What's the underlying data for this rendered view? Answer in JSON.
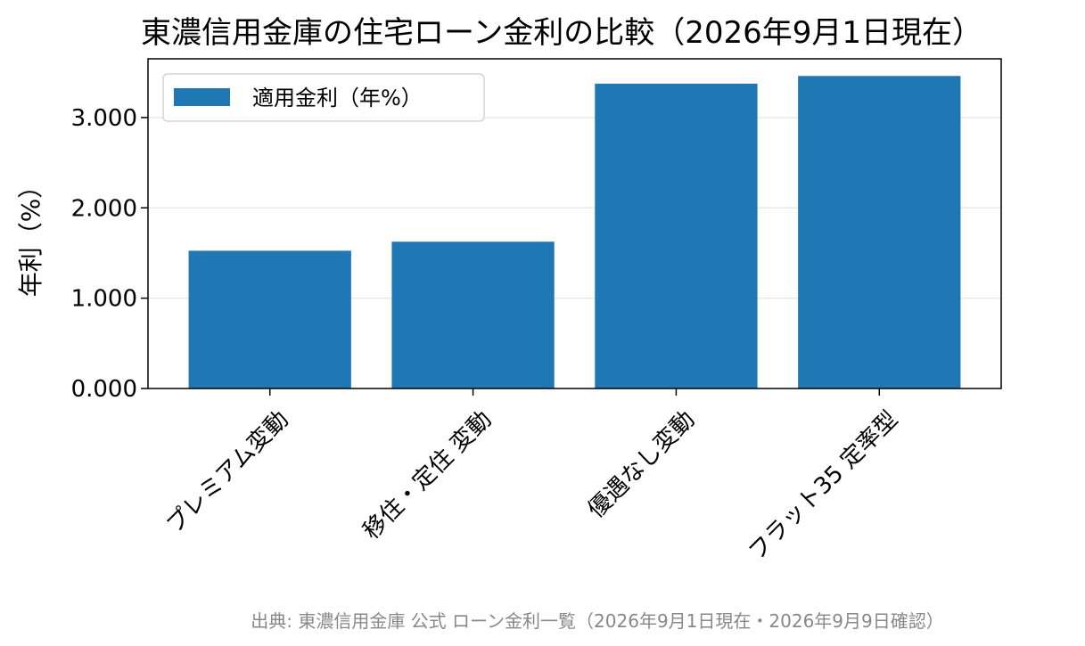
{
  "chart_data": {
    "type": "bar",
    "title": "東濃信用金庫の住宅ローン金利の比較（2026年9月1日現在）",
    "xlabel": "",
    "ylabel": "年利（%）",
    "categories": [
      "プレミアム変動",
      "移住・定住 変動",
      "優遇なし変動",
      "フラット35 定率型"
    ],
    "series": [
      {
        "name": "適用金利（年%）",
        "values": [
          1.525,
          1.625,
          3.375,
          3.46
        ],
        "color": "#1f77b4"
      }
    ],
    "ylim": [
      0,
      3.65
    ],
    "yticks": [
      0,
      1,
      2,
      3
    ],
    "ytick_labels": [
      "0.000",
      "1.000",
      "2.000",
      "3.000"
    ],
    "grid": true,
    "legend": "top-left"
  },
  "source_note": "出典: 東濃信用金庫 公式 ローン金利一覧（2026年9月1日現在・2026年9月9日確認）"
}
